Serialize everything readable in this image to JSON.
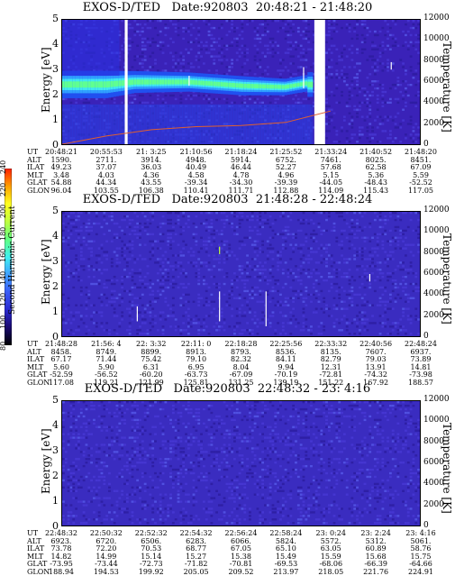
{
  "colorbar": {
    "label": "Second Harmonic Current",
    "ticks": [
      "80",
      "100",
      "120",
      "140",
      "160",
      "180",
      "200",
      "220",
      "240"
    ],
    "colors": [
      "#000000",
      "#1a0a6e",
      "#2a2ad0",
      "#3a5cf5",
      "#40a0ff",
      "#40f0f0",
      "#60ff80",
      "#c0ff40",
      "#ffff20",
      "#ffa000",
      "#ff2000"
    ]
  },
  "panels": [
    {
      "title": "EXOS-D/TED   Date:920803  20:48:21 - 21:48:20",
      "ylabel": "Energy [eV]",
      "rlabel": "Temperature [K]",
      "yticks": [
        "0",
        "1",
        "2",
        "3",
        "4",
        "5"
      ],
      "rticks": [
        "0",
        "2000",
        "4000",
        "6000",
        "8000",
        "10000",
        "12000"
      ],
      "orbit": {
        "row_labels": [
          "UT",
          "ALT",
          "ILAT",
          "MLT",
          "GLAT",
          "GLON"
        ],
        "columns": [
          [
            "20:48:21",
            "1590.",
            "49.23",
            "3.48",
            "54.88",
            "96.04"
          ],
          [
            "20:55:53",
            "2711.",
            "37.07",
            "4.03",
            "44.34",
            "103.55"
          ],
          [
            "21: 3:25",
            "3914.",
            "36.03",
            "4.36",
            "43.55",
            "106.38"
          ],
          [
            "21:10:56",
            "4948.",
            "40.49",
            "4.58",
            "-39.34",
            "110.41"
          ],
          [
            "21:18:24",
            "5914.",
            "46.44",
            "4.78",
            "-34.30",
            "111.71"
          ],
          [
            "21:25:52",
            "6752.",
            "52.27",
            "4.96",
            "-39.39",
            "112.88"
          ],
          [
            "21:33:24",
            "7461.",
            "57.68",
            "5.15",
            "-44.05",
            "114.09"
          ],
          [
            "21:40:52",
            "8025.",
            "62.58",
            "5.36",
            "-48.43",
            "115.43"
          ],
          [
            "21:48:20",
            "8451.",
            "67.09",
            "5.59",
            "-52.52",
            "117.05"
          ]
        ]
      }
    },
    {
      "title": "EXOS-D/TED   Date:920803  21:48:28 - 22:48:24",
      "ylabel": "Energy [eV]",
      "rlabel": "Temperature [K]",
      "yticks": [
        "0",
        "1",
        "2",
        "3",
        "4",
        "5"
      ],
      "rticks": [
        "0",
        "2000",
        "4000",
        "6000",
        "8000",
        "10000",
        "12000"
      ],
      "orbit": {
        "row_labels": [
          "UT",
          "ALT",
          "ILAT",
          "MLT",
          "GLAT",
          "GLON"
        ],
        "columns": [
          [
            "21:48:28",
            "8458.",
            "67.17",
            "5.60",
            "-52.59",
            "117.08"
          ],
          [
            "21:56: 4",
            "8749.",
            "71.44",
            "5.90",
            "-56.52",
            "119.21"
          ],
          [
            "22: 3:32",
            "8899.",
            "75.42",
            "6.31",
            "-60.20",
            "121.99"
          ],
          [
            "22:11: 0",
            "8913.",
            "79.10",
            "6.95",
            "-63.73",
            "125.81"
          ],
          [
            "22:18:28",
            "8793.",
            "82.32",
            "8.04",
            "-67.09",
            "131.25"
          ],
          [
            "22:25:56",
            "8536.",
            "84.11",
            "9.94",
            "-70.19",
            "139.19"
          ],
          [
            "22:33:32",
            "8135.",
            "82.79",
            "12.31",
            "-72.81",
            "151.22"
          ],
          [
            "22:40:56",
            "7607.",
            "79.03",
            "13.91",
            "-74.32",
            "167.92"
          ],
          [
            "22:48:24",
            "6937.",
            "73.89",
            "14.81",
            "-73.98",
            "188.57"
          ]
        ]
      }
    },
    {
      "title": "EXOS-D/TED   Date:920803  22:48:32 - 23: 4:16",
      "ylabel": "Energy [eV]",
      "rlabel": "Temperature [K]",
      "yticks": [
        "0",
        "1",
        "2",
        "3",
        "4",
        "5"
      ],
      "rticks": [
        "0",
        "2000",
        "4000",
        "6000",
        "8000",
        "10000",
        "12000"
      ],
      "orbit": {
        "row_labels": [
          "UT",
          "ALT",
          "ILAT",
          "MLT",
          "GLAT",
          "GLON"
        ],
        "columns": [
          [
            "22:48:32",
            "6923.",
            "73.78",
            "14.82",
            "-73.95",
            "188.94"
          ],
          [
            "22:50:32",
            "6720.",
            "72.20",
            "14.99",
            "-73.44",
            "194.53"
          ],
          [
            "22:52:32",
            "6506.",
            "70.53",
            "15.14",
            "-72.73",
            "199.92"
          ],
          [
            "22:54:32",
            "6283.",
            "68.77",
            "15.27",
            "-71.82",
            "205.05"
          ],
          [
            "22:56:24",
            "6066.",
            "67.05",
            "15.38",
            "-70.81",
            "209.52"
          ],
          [
            "22:58:24",
            "5824.",
            "65.10",
            "15.49",
            "-69.53",
            "213.97"
          ],
          [
            "23: 0:24",
            "5572.",
            "63.05",
            "15.59",
            "-68.06",
            "218.05"
          ],
          [
            "23: 2:24",
            "5312.",
            "60.89",
            "15.68",
            "-66.39",
            "221.76"
          ],
          [
            "23: 4:16",
            "5061.",
            "58.76",
            "15.75",
            "-64.66",
            "224.91"
          ]
        ]
      }
    }
  ],
  "chart_data": [
    {
      "type": "heatmap",
      "title": "EXOS-D/TED   Date:920803  20:48:21 - 21:48:20",
      "xlabel": "UT",
      "ylabel": "Energy [eV]",
      "y2label": "Temperature [K]",
      "ylim": [
        0,
        5
      ],
      "y2lim": [
        0,
        12000
      ],
      "x": [
        "20:48:21",
        "20:55:53",
        "21: 3:25",
        "21:10:56",
        "21:18:24",
        "21:25:52",
        "21:33:24",
        "21:40:52",
        "21:48:20"
      ],
      "colorbar_range": [
        80,
        240
      ],
      "peak_energy_eV": [
        2.4,
        2.4,
        2.5,
        2.5,
        2.3,
        2.3,
        2.5,
        0,
        0
      ],
      "temperature_K": [
        0,
        800,
        1400,
        1700,
        1800,
        2100,
        3200,
        0,
        0
      ]
    },
    {
      "type": "heatmap",
      "title": "EXOS-D/TED   Date:920803  21:48:28 - 22:48:24",
      "xlabel": "UT",
      "ylabel": "Energy [eV]",
      "y2label": "Temperature [K]",
      "ylim": [
        0,
        5
      ],
      "y2lim": [
        0,
        12000
      ],
      "x": [
        "21:48:28",
        "21:56: 4",
        "22: 3:32",
        "22:11: 0",
        "22:18:28",
        "22:25:56",
        "22:33:32",
        "22:40:56",
        "22:48:24"
      ],
      "colorbar_range": [
        80,
        240
      ]
    },
    {
      "type": "heatmap",
      "title": "EXOS-D/TED   Date:920803  22:48:32 - 23: 4:16",
      "xlabel": "UT",
      "ylabel": "Energy [eV]",
      "y2label": "Temperature [K]",
      "ylim": [
        0,
        5
      ],
      "y2lim": [
        0,
        12000
      ],
      "x": [
        "22:48:32",
        "22:50:32",
        "22:52:32",
        "22:54:32",
        "22:56:24",
        "22:58:24",
        "23: 0:24",
        "23: 2:24",
        "23: 4:16"
      ],
      "colorbar_range": [
        80,
        240
      ]
    }
  ]
}
